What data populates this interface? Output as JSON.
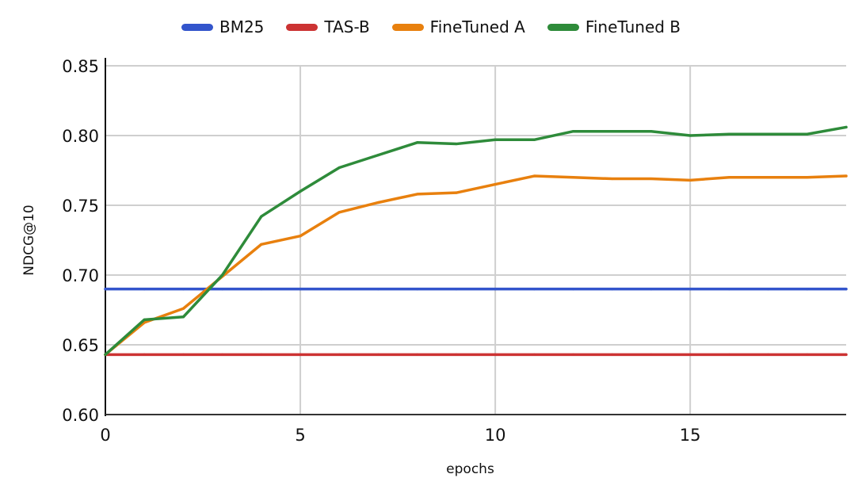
{
  "chart_data": {
    "type": "line",
    "xlabel": "epochs",
    "ylabel": "NDCG@10",
    "xlim": [
      0,
      19
    ],
    "ylim": [
      0.6,
      0.85
    ],
    "xticks": [
      0,
      5,
      10,
      15
    ],
    "xtick_labels": [
      "0",
      "5",
      "10",
      "15"
    ],
    "yticks": [
      0.6,
      0.65,
      0.7,
      0.75,
      0.8,
      0.85
    ],
    "ytick_labels": [
      "0.60",
      "0.65",
      "0.70",
      "0.75",
      "0.80",
      "0.85"
    ],
    "grid": true,
    "legend_position": "top-center",
    "x": [
      0,
      1,
      2,
      3,
      4,
      5,
      6,
      7,
      8,
      9,
      10,
      11,
      12,
      13,
      14,
      15,
      16,
      17,
      18,
      19
    ],
    "series": [
      {
        "name": "BM25",
        "color": "#3355cc",
        "values": [
          0.69,
          0.69,
          0.69,
          0.69,
          0.69,
          0.69,
          0.69,
          0.69,
          0.69,
          0.69,
          0.69,
          0.69,
          0.69,
          0.69,
          0.69,
          0.69,
          0.69,
          0.69,
          0.69,
          0.69
        ]
      },
      {
        "name": "TAS-B",
        "color": "#cc3333",
        "values": [
          0.643,
          0.643,
          0.643,
          0.643,
          0.643,
          0.643,
          0.643,
          0.643,
          0.643,
          0.643,
          0.643,
          0.643,
          0.643,
          0.643,
          0.643,
          0.643,
          0.643,
          0.643,
          0.643,
          0.643
        ]
      },
      {
        "name": "FineTuned A",
        "color": "#e8800e",
        "values": [
          0.643,
          0.666,
          0.676,
          0.699,
          0.722,
          0.728,
          0.745,
          0.752,
          0.758,
          0.759,
          0.765,
          0.771,
          0.77,
          0.769,
          0.769,
          0.768,
          0.77,
          0.77,
          0.77,
          0.771
        ]
      },
      {
        "name": "FineTuned B",
        "color": "#2e8b3a",
        "values": [
          0.643,
          0.668,
          0.67,
          0.7,
          0.742,
          0.76,
          0.777,
          0.786,
          0.795,
          0.794,
          0.797,
          0.797,
          0.803,
          0.803,
          0.803,
          0.8,
          0.801,
          0.801,
          0.801,
          0.806
        ]
      }
    ]
  }
}
